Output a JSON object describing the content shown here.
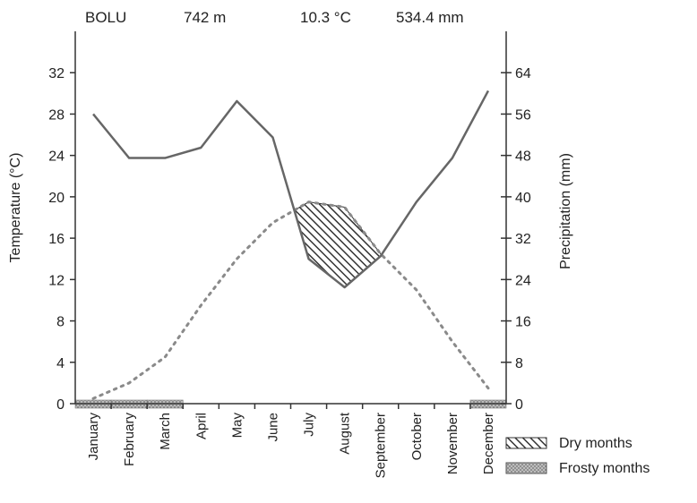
{
  "header": {
    "station": "BOLU",
    "altitude": "742 m",
    "mean_temperature": "10.3 °C",
    "annual_precipitation": "534.4 mm"
  },
  "legend": {
    "dry": "Dry months",
    "frosty": "Frosty months"
  },
  "colors": {
    "temperature_line": "#666666",
    "precipitation_line": "#8a8a8a",
    "dry_hatch": "#333333",
    "frost_fill": "#9a9a9a",
    "axis": "#333333"
  },
  "chart_data": {
    "type": "line",
    "categories": [
      "January",
      "February",
      "March",
      "April",
      "May",
      "June",
      "July",
      "August",
      "September",
      "October",
      "November",
      "December"
    ],
    "series": [
      {
        "axis": "left",
        "values": [
          0.5,
          2,
          4.5,
          9.5,
          14,
          17.5,
          19.5,
          19,
          14.5,
          11,
          6,
          1.5
        ]
      },
      {
        "axis": "right",
        "values": [
          56,
          47.5,
          47.5,
          49.5,
          58.5,
          51.5,
          28,
          22.5,
          28.5,
          39,
          47.5,
          60.5
        ]
      }
    ],
    "dry_months": [
      "July",
      "August",
      "September"
    ],
    "frosty_months": [
      "January",
      "February",
      "March",
      "December"
    ],
    "ylabel": "Temperature (°C)",
    "ylabel_right": "Precipitation (mm)",
    "ylim": [
      0,
      36
    ],
    "ylim_right": [
      0,
      72
    ],
    "yticks": [
      0,
      4,
      8,
      12,
      16,
      20,
      24,
      28,
      32
    ],
    "yticks_right": [
      0,
      8,
      16,
      24,
      32,
      40,
      48,
      56,
      64
    ],
    "grid": false,
    "legend_position": "bottom-right"
  }
}
